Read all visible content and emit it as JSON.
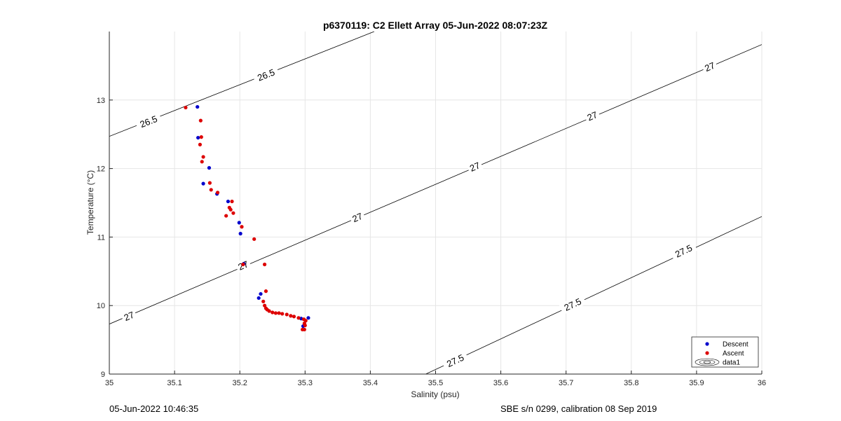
{
  "chart_data": {
    "type": "scatter",
    "title": "p6370119: C2 Ellett Array 05-Jun-2022 08:07:23Z",
    "xlabel": "Salinity (psu)",
    "ylabel": "Temperature (°C)",
    "xlim": [
      35,
      36
    ],
    "ylim": [
      9,
      14
    ],
    "xticks": [
      "35",
      "35.1",
      "35.2",
      "35.3",
      "35.4",
      "35.5",
      "35.6",
      "35.7",
      "35.8",
      "35.9",
      "36"
    ],
    "yticks": [
      "9",
      "10",
      "11",
      "12",
      "13"
    ],
    "grid": true,
    "legend_position": "bottom-right",
    "legend": [
      "Descent",
      "Ascent",
      "data1"
    ],
    "series": [
      {
        "name": "Descent",
        "color": "#0000cc",
        "points": [
          [
            35.135,
            12.9
          ],
          [
            35.136,
            12.45
          ],
          [
            35.144,
            11.78
          ],
          [
            35.153,
            12.01
          ],
          [
            35.165,
            11.63
          ],
          [
            35.182,
            11.52
          ],
          [
            35.199,
            11.21
          ],
          [
            35.201,
            11.05
          ],
          [
            35.206,
            10.61
          ],
          [
            35.229,
            10.11
          ],
          [
            35.232,
            10.17
          ],
          [
            35.297,
            9.7
          ],
          [
            35.294,
            9.81
          ],
          [
            35.305,
            9.82
          ]
        ]
      },
      {
        "name": "Ascent",
        "color": "#dd0000",
        "points": [
          [
            35.117,
            12.89
          ],
          [
            35.14,
            12.7
          ],
          [
            35.141,
            12.46
          ],
          [
            35.139,
            12.35
          ],
          [
            35.144,
            12.17
          ],
          [
            35.142,
            12.1
          ],
          [
            35.154,
            11.79
          ],
          [
            35.156,
            11.69
          ],
          [
            35.166,
            11.65
          ],
          [
            35.179,
            11.31
          ],
          [
            35.184,
            11.43
          ],
          [
            35.186,
            11.4
          ],
          [
            35.188,
            11.52
          ],
          [
            35.19,
            11.35
          ],
          [
            35.203,
            11.15
          ],
          [
            35.222,
            10.97
          ],
          [
            35.238,
            10.6
          ],
          [
            35.205,
            10.6
          ],
          [
            35.24,
            10.21
          ],
          [
            35.236,
            10.06
          ],
          [
            35.238,
            10.0
          ],
          [
            35.24,
            9.96
          ],
          [
            35.242,
            9.94
          ],
          [
            35.245,
            9.92
          ],
          [
            35.25,
            9.9
          ],
          [
            35.255,
            9.89
          ],
          [
            35.26,
            9.89
          ],
          [
            35.265,
            9.88
          ],
          [
            35.272,
            9.87
          ],
          [
            35.278,
            9.85
          ],
          [
            35.283,
            9.84
          ],
          [
            35.29,
            9.82
          ],
          [
            35.298,
            9.8
          ],
          [
            35.301,
            9.78
          ],
          [
            35.299,
            9.74
          ],
          [
            35.3,
            9.71
          ],
          [
            35.296,
            9.65
          ],
          [
            35.299,
            9.65
          ]
        ]
      }
    ],
    "contours": [
      {
        "level": "26.5",
        "points": [
          [
            35,
            12.47
          ],
          [
            35.406,
            14
          ]
        ],
        "labels": [
          {
            "text": "26.5",
            "at": [
              35.06,
              12.69
            ]
          },
          {
            "text": "26.5",
            "at": [
              35.24,
              13.37
            ]
          }
        ]
      },
      {
        "level": "27",
        "points": [
          [
            35,
            9.73
          ],
          [
            36,
            13.81
          ]
        ],
        "labels": [
          {
            "text": "27",
            "at": [
              35.03,
              9.85
            ]
          },
          {
            "text": "27",
            "at": [
              35.205,
              10.59
            ]
          },
          {
            "text": "27",
            "at": [
              35.38,
              11.29
            ]
          },
          {
            "text": "27",
            "at": [
              35.56,
              12.03
            ]
          },
          {
            "text": "27",
            "at": [
              35.74,
              12.77
            ]
          },
          {
            "text": "27",
            "at": [
              35.92,
              13.49
            ]
          }
        ]
      },
      {
        "level": "27.5",
        "points": [
          [
            35.485,
            9
          ],
          [
            36,
            11.3
          ]
        ],
        "labels": [
          {
            "text": "27.5",
            "at": [
              35.53,
              9.2
            ]
          },
          {
            "text": "27.5",
            "at": [
              35.71,
              10.02
            ]
          },
          {
            "text": "27.5",
            "at": [
              35.88,
              10.8
            ]
          }
        ]
      }
    ]
  },
  "footer": {
    "timestamp": "05-Jun-2022 10:46:35",
    "calibration": "SBE s/n 0299, calibration 08 Sep 2019"
  }
}
